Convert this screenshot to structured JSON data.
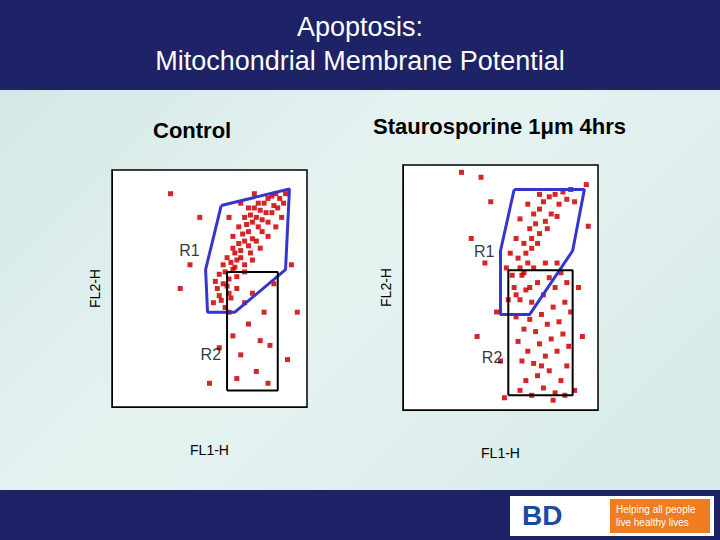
{
  "page": {
    "title_lines": [
      "Apoptosis:",
      "Mitochondrial Membrane Potential"
    ],
    "logo": "BD",
    "tagline": [
      "Helping all people",
      "live healthy lives"
    ]
  },
  "chart_data": [
    {
      "type": "scatter",
      "title": "Control",
      "x_label": "FL1-H",
      "y_label": "FL2-H",
      "xlim": [
        0,
        100
      ],
      "ylim": [
        0,
        100
      ],
      "grid": false,
      "tick_labels": false,
      "color": "#cc0000",
      "marker": "square",
      "points": [
        [
          52,
          44
        ],
        [
          55,
          47
        ],
        [
          54,
          50
        ],
        [
          57,
          52
        ],
        [
          60,
          54
        ],
        [
          58,
          57
        ],
        [
          62,
          58
        ],
        [
          61,
          61
        ],
        [
          64,
          62
        ],
        [
          63,
          65
        ],
        [
          66,
          66
        ],
        [
          65,
          69
        ],
        [
          68,
          70
        ],
        [
          67,
          73
        ],
        [
          70,
          74
        ],
        [
          69,
          77
        ],
        [
          72,
          78
        ],
        [
          71,
          81
        ],
        [
          74,
          80
        ],
        [
          73,
          84
        ],
        [
          76,
          83
        ],
        [
          75,
          86
        ],
        [
          78,
          86
        ],
        [
          80,
          88
        ],
        [
          82,
          89
        ],
        [
          84,
          90
        ],
        [
          86,
          88
        ],
        [
          83,
          85
        ],
        [
          79,
          82
        ],
        [
          77,
          79
        ],
        [
          75,
          76
        ],
        [
          72,
          71
        ],
        [
          70,
          68
        ],
        [
          66,
          63
        ],
        [
          63,
          59
        ],
        [
          59,
          51
        ],
        [
          56,
          45
        ],
        [
          60,
          48
        ],
        [
          64,
          55
        ],
        [
          68,
          60
        ],
        [
          71,
          65
        ],
        [
          74,
          70
        ],
        [
          77,
          74
        ],
        [
          80,
          78
        ],
        [
          82,
          82
        ],
        [
          85,
          84
        ],
        [
          87,
          80
        ],
        [
          84,
          76
        ],
        [
          80,
          72
        ],
        [
          76,
          67
        ],
        [
          72,
          62
        ],
        [
          68,
          57
        ],
        [
          64,
          50
        ],
        [
          61,
          46
        ],
        [
          58,
          42
        ],
        [
          62,
          72
        ],
        [
          65,
          76
        ],
        [
          68,
          80
        ],
        [
          70,
          84
        ],
        [
          62,
          67
        ],
        [
          59,
          63
        ],
        [
          57,
          60
        ],
        [
          55,
          56
        ],
        [
          53,
          53
        ],
        [
          88,
          86
        ],
        [
          89,
          90
        ],
        [
          60,
          80
        ],
        [
          66,
          86
        ],
        [
          73,
          90
        ],
        [
          62,
          30
        ],
        [
          66,
          22
        ],
        [
          70,
          35
        ],
        [
          74,
          15
        ],
        [
          78,
          40
        ],
        [
          81,
          26
        ],
        [
          64,
          12
        ],
        [
          72,
          48
        ],
        [
          83,
          52
        ],
        [
          60,
          40
        ],
        [
          76,
          28
        ],
        [
          68,
          44
        ],
        [
          80,
          10
        ],
        [
          55,
          25
        ],
        [
          40,
          60
        ],
        [
          45,
          80
        ],
        [
          30,
          90
        ],
        [
          95,
          40
        ],
        [
          90,
          20
        ],
        [
          50,
          10
        ],
        [
          92,
          60
        ],
        [
          35,
          50
        ]
      ],
      "regions": [
        {
          "label": "R1",
          "shape": "polygon",
          "points": [
            [
              56,
              85
            ],
            [
              91,
              92
            ],
            [
              89,
              58
            ],
            [
              63,
              40
            ],
            [
              49,
              40
            ],
            [
              48,
              58
            ]
          ],
          "color": "#3535d0"
        },
        {
          "label": "R2",
          "shape": "rect",
          "x": [
            59,
            85
          ],
          "y": [
            7,
            57
          ],
          "color": "#000000"
        }
      ]
    },
    {
      "type": "scatter",
      "title": "Staurosporine 1μm 4hrs",
      "x_label": "FL1-H",
      "y_label": "FL2-H",
      "xlim": [
        0,
        100
      ],
      "ylim": [
        0,
        100
      ],
      "grid": false,
      "tick_labels": false,
      "color": "#cc0000",
      "marker": "square",
      "points": [
        [
          54,
          45
        ],
        [
          57,
          50
        ],
        [
          56,
          55
        ],
        [
          60,
          58
        ],
        [
          59,
          62
        ],
        [
          63,
          64
        ],
        [
          62,
          68
        ],
        [
          66,
          70
        ],
        [
          65,
          74
        ],
        [
          68,
          76
        ],
        [
          67,
          80
        ],
        [
          70,
          82
        ],
        [
          72,
          85
        ],
        [
          75,
          87
        ],
        [
          78,
          88
        ],
        [
          82,
          89
        ],
        [
          86,
          90
        ],
        [
          84,
          86
        ],
        [
          80,
          84
        ],
        [
          76,
          80
        ],
        [
          73,
          77
        ],
        [
          70,
          72
        ],
        [
          66,
          66
        ],
        [
          61,
          55
        ],
        [
          58,
          47
        ],
        [
          64,
          60
        ],
        [
          69,
          68
        ],
        [
          74,
          74
        ],
        [
          79,
          79
        ],
        [
          88,
          85
        ],
        [
          60,
          78
        ],
        [
          64,
          84
        ],
        [
          70,
          88
        ],
        [
          58,
          70
        ],
        [
          55,
          64
        ],
        [
          53,
          58
        ],
        [
          60,
          8
        ],
        [
          63,
          12
        ],
        [
          66,
          6
        ],
        [
          69,
          14
        ],
        [
          72,
          9
        ],
        [
          75,
          16
        ],
        [
          78,
          7
        ],
        [
          81,
          12
        ],
        [
          84,
          18
        ],
        [
          61,
          20
        ],
        [
          64,
          24
        ],
        [
          67,
          19
        ],
        [
          70,
          27
        ],
        [
          73,
          22
        ],
        [
          76,
          29
        ],
        [
          79,
          24
        ],
        [
          82,
          31
        ],
        [
          85,
          26
        ],
        [
          62,
          33
        ],
        [
          65,
          37
        ],
        [
          68,
          32
        ],
        [
          71,
          39
        ],
        [
          74,
          35
        ],
        [
          77,
          42
        ],
        [
          80,
          36
        ],
        [
          83,
          44
        ],
        [
          86,
          40
        ],
        [
          60,
          45
        ],
        [
          63,
          49
        ],
        [
          66,
          44
        ],
        [
          69,
          52
        ],
        [
          72,
          47
        ],
        [
          75,
          54
        ],
        [
          78,
          50
        ],
        [
          81,
          56
        ],
        [
          84,
          52
        ],
        [
          62,
          56
        ],
        [
          67,
          58
        ],
        [
          73,
          60
        ],
        [
          79,
          60
        ],
        [
          59,
          28
        ],
        [
          65,
          50
        ],
        [
          71,
          18
        ],
        [
          77,
          4
        ],
        [
          83,
          6
        ],
        [
          58,
          38
        ],
        [
          40,
          95
        ],
        [
          45,
          85
        ],
        [
          35,
          70
        ],
        [
          90,
          50
        ],
        [
          92,
          30
        ],
        [
          50,
          20
        ],
        [
          48,
          40
        ],
        [
          95,
          75
        ],
        [
          30,
          97
        ],
        [
          42,
          60
        ],
        [
          88,
          8
        ],
        [
          52,
          5
        ],
        [
          94,
          92
        ],
        [
          38,
          30
        ]
      ],
      "regions": [
        {
          "label": "R1",
          "shape": "polygon",
          "points": [
            [
              57,
              90
            ],
            [
              93,
              90
            ],
            [
              87,
              65
            ],
            [
              65,
              39
            ],
            [
              50,
              39
            ],
            [
              50,
              65
            ]
          ],
          "color": "#3535d0"
        },
        {
          "label": "R2",
          "shape": "rect",
          "x": [
            54,
            87
          ],
          "y": [
            6,
            57
          ],
          "color": "#000000"
        }
      ]
    }
  ]
}
